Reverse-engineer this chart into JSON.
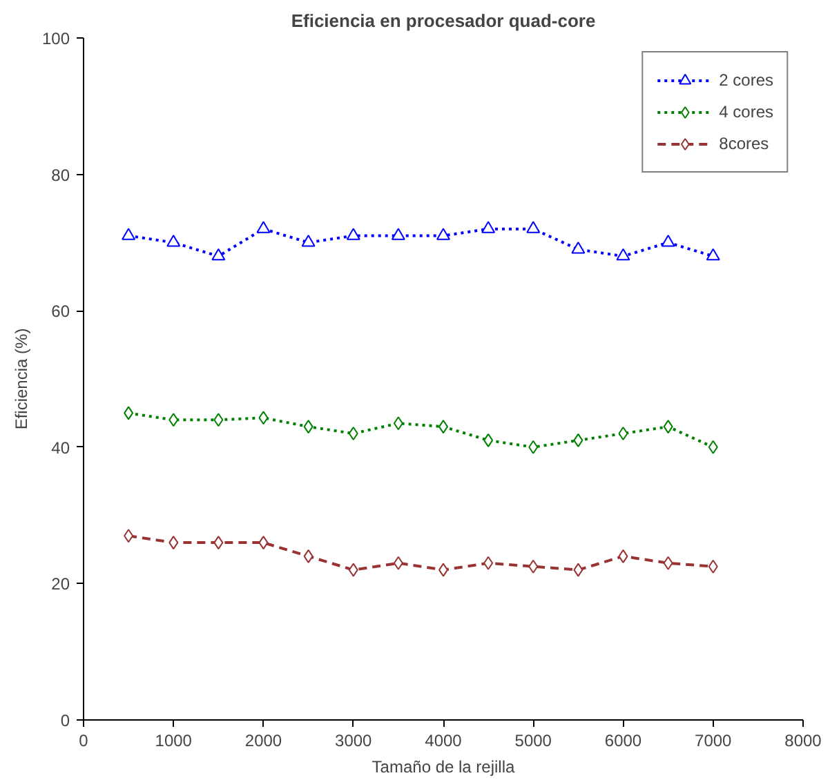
{
  "chart_data": {
    "type": "line",
    "title": "Eficiencia en procesador quad-core",
    "xlabel": "Tamaño de la rejilla",
    "ylabel": "Eficiencia (%)",
    "x": [
      500,
      1000,
      1500,
      2000,
      2500,
      3000,
      3500,
      4000,
      4500,
      5000,
      5500,
      6000,
      6500,
      7000
    ],
    "series": [
      {
        "name": "2 cores",
        "color": "#0000ff",
        "marker": "triangle",
        "line_style": "dotted",
        "values": [
          71,
          70,
          68,
          72,
          70,
          71,
          71,
          71,
          72,
          72,
          69,
          68,
          70,
          68
        ]
      },
      {
        "name": "4 cores",
        "color": "#008000",
        "marker": "diamond",
        "line_style": "dotted",
        "values": [
          45,
          44,
          44,
          44.3,
          43,
          42,
          43.5,
          43,
          41,
          40,
          41,
          42,
          43,
          40
        ]
      },
      {
        "name": "8cores",
        "color": "#993333",
        "marker": "diamond",
        "line_style": "dashed",
        "values": [
          27,
          26,
          26,
          26,
          24,
          22,
          23,
          22,
          23,
          22.5,
          22,
          24,
          23,
          22.5
        ]
      }
    ],
    "xlim": [
      0,
      8000
    ],
    "ylim": [
      0,
      100
    ],
    "xticks": [
      0,
      1000,
      2000,
      3000,
      4000,
      5000,
      6000,
      7000,
      8000
    ],
    "yticks": [
      0,
      20,
      40,
      60,
      80,
      100
    ],
    "grid": false,
    "legend": "top right"
  }
}
